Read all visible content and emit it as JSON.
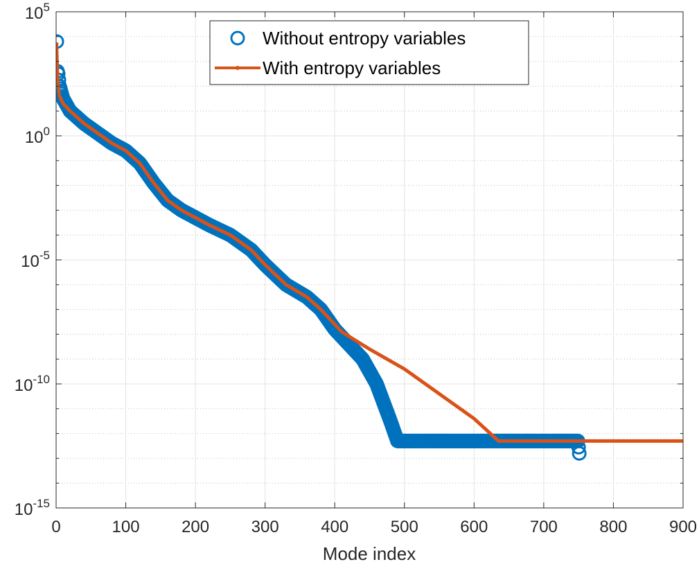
{
  "chart_data": {
    "type": "line",
    "title": "",
    "xlabel": "Mode index",
    "ylabel": "",
    "xlim": [
      0,
      900
    ],
    "ylim_exponent": [
      -15,
      5
    ],
    "yscale": "log",
    "grid": true,
    "minor_grid": true,
    "legend_position": "top",
    "x_ticks": [
      "0",
      "100",
      "200",
      "300",
      "400",
      "500",
      "600",
      "700",
      "800",
      "900"
    ],
    "y_tick_base": "10",
    "y_tick_exponents": [
      "-15",
      "-10",
      "-5",
      "0",
      "5"
    ],
    "series": [
      {
        "name": "Without entropy variables",
        "color": "#0072BD",
        "marker": "circle",
        "x_range": [
          1,
          751
        ],
        "points_log10": [
          [
            1,
            3.8
          ],
          [
            2,
            2.6
          ],
          [
            3,
            2.5
          ],
          [
            5,
            2.0
          ],
          [
            10,
            1.5
          ],
          [
            20,
            1.0
          ],
          [
            40,
            0.5
          ],
          [
            60,
            0.1
          ],
          [
            80,
            -0.3
          ],
          [
            100,
            -0.6
          ],
          [
            120,
            -1.1
          ],
          [
            140,
            -1.9
          ],
          [
            160,
            -2.6
          ],
          [
            180,
            -3.0
          ],
          [
            200,
            -3.3
          ],
          [
            220,
            -3.6
          ],
          [
            250,
            -4.0
          ],
          [
            280,
            -4.6
          ],
          [
            300,
            -5.2
          ],
          [
            330,
            -6.0
          ],
          [
            360,
            -6.5
          ],
          [
            380,
            -7.0
          ],
          [
            400,
            -7.8
          ],
          [
            420,
            -8.4
          ],
          [
            440,
            -9.0
          ],
          [
            460,
            -10.0
          ],
          [
            480,
            -11.5
          ],
          [
            490,
            -12.3
          ],
          [
            500,
            -12.3
          ],
          [
            600,
            -12.3
          ],
          [
            700,
            -12.3
          ],
          [
            749,
            -12.3
          ],
          [
            751,
            -12.8
          ]
        ]
      },
      {
        "name": "With entropy variables",
        "color": "#D95319",
        "marker": "dot",
        "x_range": [
          1,
          900
        ],
        "points_log10": [
          [
            1,
            3.7
          ],
          [
            3,
            2.0
          ],
          [
            5,
            1.6
          ],
          [
            10,
            1.3
          ],
          [
            20,
            1.0
          ],
          [
            40,
            0.5
          ],
          [
            60,
            0.1
          ],
          [
            80,
            -0.3
          ],
          [
            100,
            -0.6
          ],
          [
            120,
            -1.1
          ],
          [
            140,
            -1.9
          ],
          [
            160,
            -2.6
          ],
          [
            180,
            -3.0
          ],
          [
            200,
            -3.3
          ],
          [
            220,
            -3.6
          ],
          [
            250,
            -4.0
          ],
          [
            280,
            -4.6
          ],
          [
            300,
            -5.2
          ],
          [
            330,
            -6.0
          ],
          [
            360,
            -6.5
          ],
          [
            380,
            -7.0
          ],
          [
            410,
            -7.9
          ],
          [
            450,
            -8.6
          ],
          [
            500,
            -9.4
          ],
          [
            550,
            -10.4
          ],
          [
            600,
            -11.4
          ],
          [
            635,
            -12.3
          ],
          [
            700,
            -12.3
          ],
          [
            800,
            -12.3
          ],
          [
            900,
            -12.3
          ]
        ]
      }
    ]
  }
}
